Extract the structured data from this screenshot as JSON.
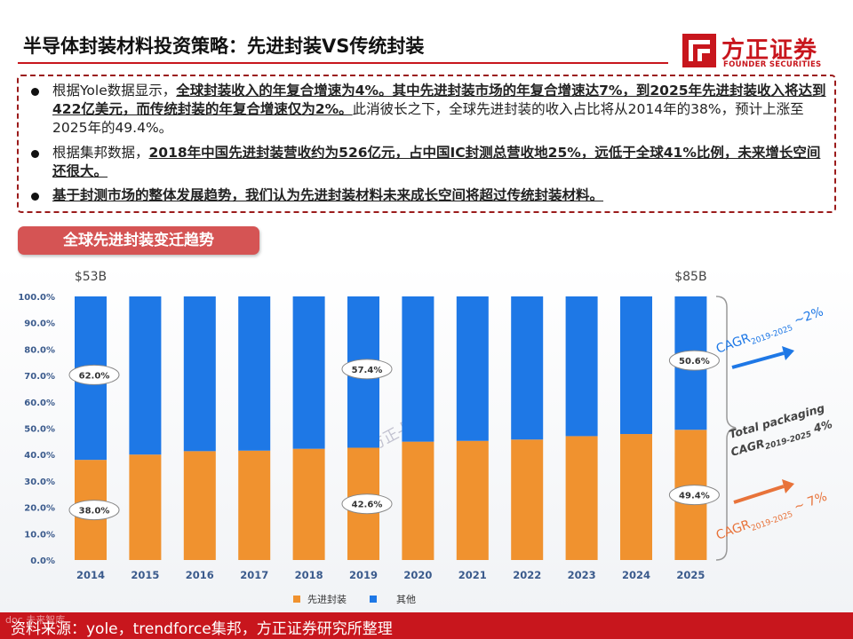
{
  "title": "半导体封装材料投资策略：先进封装VS传统封装",
  "logo": {
    "cn": "方正证券",
    "en": "FOUNDER SECURITIES",
    "brand_color": "#c8161d"
  },
  "bullets": [
    {
      "plain": "根据Yole数据显示，",
      "bold": "全球封装收入的年复合增速为4%。其中先进封装市场的年复合增速达7%，到2025年先进封装收入将达到422亿美元，而传统封装的年复合增速仅为2%。",
      "tail": "此消彼长之下，全球先进封装的收入占比将从2014年的38%，预计上涨至2025年的49.4%。"
    },
    {
      "plain": "根据集邦数据，",
      "bold": "2018年中国先进封装营收约为526亿元，占中国IC封测总营收地25%，远低于全球41%比例，未来增长空间还很大。",
      "tail": ""
    },
    {
      "plain": "",
      "bold": "基于封测市场的整体发展趋势，我们认为先进封装材料未来成长空间将超过传统封装材料。",
      "tail": ""
    }
  ],
  "chart_tag": "全球先进封装变迁趋势",
  "chart_data": {
    "type": "bar",
    "stacked": true,
    "categories": [
      "2014",
      "2015",
      "2016",
      "2017",
      "2018",
      "2019",
      "2020",
      "2021",
      "2022",
      "2023",
      "2024",
      "2025"
    ],
    "series": [
      {
        "name": "先进封装",
        "color": "#f0922f",
        "values": [
          38.0,
          40.0,
          41.3,
          41.5,
          42.2,
          42.6,
          44.9,
          45.2,
          45.7,
          47.0,
          47.8,
          49.4
        ]
      },
      {
        "name": "其他",
        "color": "#1e78e6",
        "values": [
          62.0,
          60.0,
          58.7,
          58.5,
          57.8,
          57.4,
          55.1,
          54.8,
          54.3,
          53.0,
          52.2,
          50.6
        ]
      }
    ],
    "y_ticks": [
      "0.0%",
      "10.0%",
      "20.0%",
      "30.0%",
      "40.0%",
      "50.0%",
      "60.0%",
      "70.0%",
      "80.0%",
      "90.0%",
      "100.0%"
    ],
    "ylim": [
      0,
      100
    ],
    "data_labels": [
      {
        "category": "2014",
        "series": "先进封装",
        "text": "38.0%"
      },
      {
        "category": "2014",
        "series": "其他",
        "text": "62.0%"
      },
      {
        "category": "2019",
        "series": "先进封装",
        "text": "42.6%"
      },
      {
        "category": "2019",
        "series": "其他",
        "text": "57.4%"
      },
      {
        "category": "2025",
        "series": "先进封装",
        "text": "49.4%"
      },
      {
        "category": "2025",
        "series": "其他",
        "text": "50.6%"
      }
    ],
    "totals": [
      {
        "category": "2014",
        "text": "$53B"
      },
      {
        "category": "2025",
        "text": "$85B"
      }
    ],
    "annotations": {
      "other_cagr": {
        "label": "CAGR",
        "sub": "2019-2025",
        "value": "~2%",
        "color": "#1e78e6"
      },
      "total_cagr": {
        "line1": "Total packaging",
        "line2": "CAGR",
        "sub": "2019-2025",
        "value": "4%",
        "color": "#444444"
      },
      "adv_cagr": {
        "label": "CAGR",
        "sub": "2019-2025",
        "value": "~ 7%",
        "color": "#e8733a"
      }
    },
    "legend_position": "bottom",
    "watermark": "方正-陈杭"
  },
  "source": "资料来源：yole，trendforce集邦，方正证券研究所整理",
  "corner_watermark": "doc 未来智库"
}
